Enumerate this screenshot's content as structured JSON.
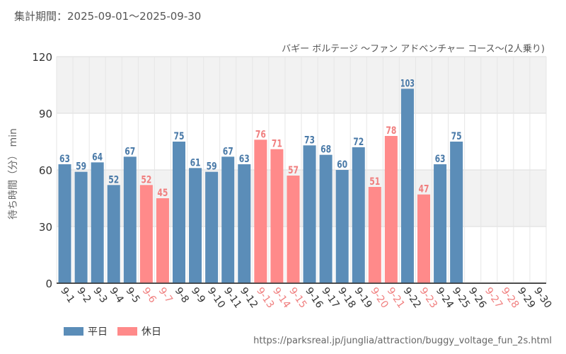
{
  "period_text": "集計期間：2025-09-01～2025-09-30",
  "colors": {
    "weekday": "#5b8db8",
    "holiday": "#ff8a8a",
    "label_weekday": "#4a7aa8",
    "label_holiday": "#f07f7f"
  },
  "legend": {
    "weekday": "平日",
    "holiday": "休日"
  },
  "source_url": "https://parksreal.jp/junglia/attraction/buggy_voltage_fun_2s.html",
  "chart_data": {
    "type": "bar",
    "title": "バギー ボルテージ ～ファン アドベンチャー コース～(2人乗り)",
    "ylabel": "待ち時間（分） min",
    "xlabel": "",
    "ylim": [
      0,
      120
    ],
    "yticks": [
      0,
      30,
      60,
      90,
      120
    ],
    "categories": [
      "9-1",
      "9-2",
      "9-3",
      "9-4",
      "9-5",
      "9-6",
      "9-7",
      "9-8",
      "9-9",
      "9-10",
      "9-11",
      "9-12",
      "9-13",
      "9-14",
      "9-15",
      "9-16",
      "9-17",
      "9-18",
      "9-19",
      "9-20",
      "9-21",
      "9-22",
      "9-23",
      "9-24",
      "9-25",
      "9-26",
      "9-27",
      "9-28",
      "9-29",
      "9-30"
    ],
    "values": [
      63,
      59,
      64,
      52,
      67,
      52,
      45,
      75,
      61,
      59,
      67,
      63,
      76,
      71,
      57,
      73,
      68,
      60,
      72,
      51,
      78,
      103,
      47,
      63,
      75,
      null,
      null,
      null,
      null,
      null
    ],
    "holiday": [
      false,
      false,
      false,
      false,
      false,
      true,
      true,
      false,
      false,
      false,
      false,
      false,
      true,
      true,
      true,
      false,
      false,
      false,
      false,
      true,
      true,
      false,
      true,
      false,
      false,
      false,
      true,
      true,
      false,
      false
    ]
  }
}
